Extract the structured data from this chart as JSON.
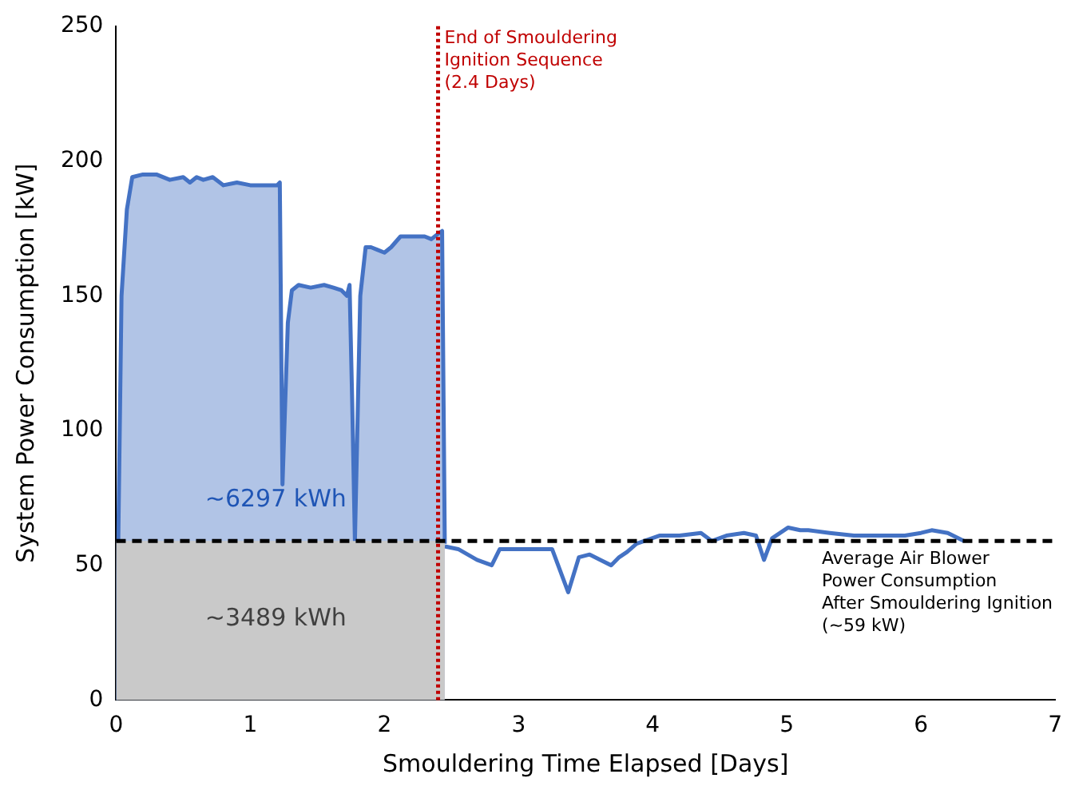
{
  "chart_data": {
    "type": "line",
    "xlabel": "Smouldering Time Elapsed [Days]",
    "ylabel": "System Power Consumption [kW]",
    "xlim": [
      0,
      7
    ],
    "ylim": [
      0,
      250
    ],
    "xticks": [
      0,
      1,
      2,
      3,
      4,
      5,
      6,
      7
    ],
    "yticks": [
      0,
      50,
      100,
      150,
      200,
      250
    ],
    "grid": false,
    "legend": false,
    "marker": "none",
    "series": [
      {
        "type": "area",
        "color": "#4472c4",
        "x": [
          0,
          0.04,
          0.08,
          0.12,
          0.2,
          0.3,
          0.4,
          0.5,
          0.55,
          0.6,
          0.65,
          0.72,
          0.8,
          0.9,
          1.0,
          1.1,
          1.2,
          1.22,
          1.24,
          1.28,
          1.31,
          1.36,
          1.45,
          1.55,
          1.62,
          1.68,
          1.72,
          1.74,
          1.76,
          1.78,
          1.82,
          1.86,
          1.9,
          1.95,
          2.0,
          2.05,
          2.12,
          2.2,
          2.3,
          2.35,
          2.4,
          2.43,
          2.45
        ],
        "values": [
          0,
          150,
          182,
          194,
          195,
          195,
          193,
          194,
          192,
          194,
          193,
          194,
          191,
          192,
          191,
          191,
          191,
          192,
          80,
          140,
          152,
          154,
          153,
          154,
          153,
          152,
          150,
          154,
          110,
          59,
          150,
          168,
          168,
          167,
          166,
          168,
          172,
          172,
          172,
          171,
          173,
          174,
          58
        ]
      },
      {
        "type": "line",
        "color": "#4472c4",
        "x": [
          2.45,
          2.55,
          2.69,
          2.8,
          2.86,
          3.0,
          3.25,
          3.37,
          3.45,
          3.53,
          3.61,
          3.69,
          3.75,
          3.81,
          3.88,
          4.05,
          4.2,
          4.36,
          4.44,
          4.55,
          4.68,
          4.77,
          4.83,
          4.89,
          5.01,
          5.1,
          5.16,
          5.32,
          5.5,
          5.68,
          5.88,
          6.0,
          6.08,
          6.2,
          6.32
        ],
        "values": [
          57,
          56,
          52,
          50,
          56,
          56,
          56,
          40,
          53,
          54,
          52,
          50,
          53,
          55,
          58,
          61,
          61,
          62,
          59,
          61,
          62,
          61,
          52,
          60,
          64,
          63,
          63,
          62,
          61,
          61,
          61,
          62,
          63,
          62,
          59
        ]
      },
      {
        "type": "area",
        "color": "#c9c9c9",
        "x": [
          0,
          2.45
        ],
        "values": [
          59,
          59
        ]
      }
    ],
    "ref_lines": [
      {
        "axis": "x",
        "value": 2.4,
        "label": "End of Smouldering\nIgnition Sequence\n(2.4 Days)",
        "color": "#c00000",
        "line_style": "dotted"
      },
      {
        "axis": "y",
        "value": 59,
        "label": "Average Air Blower\nPower Consumption\nAfter Smouldering Ignition\n(~59 kW)",
        "color": "#000000",
        "line_style": "dashed"
      }
    ],
    "annotations": [
      "~6297 kWh",
      "~3489 kWh"
    ]
  }
}
